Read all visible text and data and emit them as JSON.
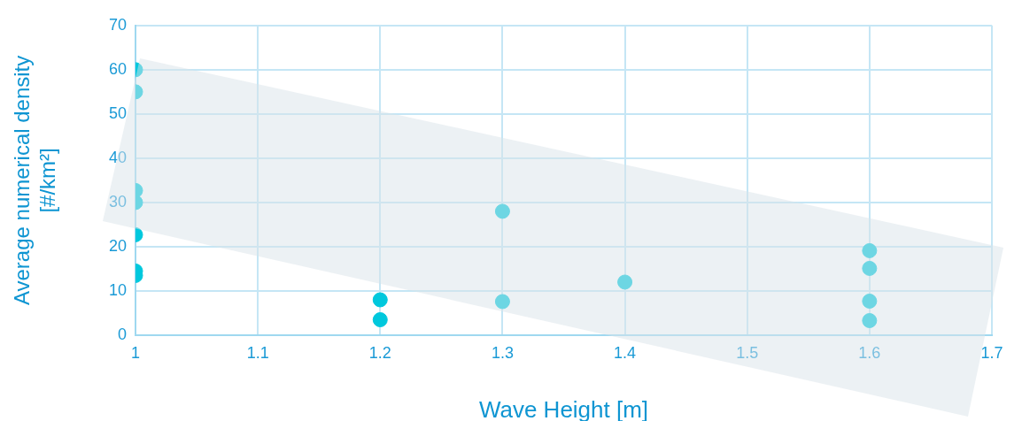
{
  "chart_data": {
    "type": "scatter",
    "xlabel": "Wave Height [m]",
    "ylabel": "Average numerical density [#/km²]",
    "x": [
      1,
      1,
      1,
      1,
      1,
      1,
      1,
      1.2,
      1.2,
      1.3,
      1.3,
      1.4,
      1.6,
      1.6,
      1.6,
      1.6
    ],
    "values": [
      60,
      55,
      32.7,
      30,
      22.7,
      14.5,
      13.5,
      8,
      3.5,
      28,
      7.6,
      12,
      19.1,
      15.1,
      7.7,
      3.3
    ],
    "color": "#00c8dd",
    "marker": "circle",
    "xlim": [
      1,
      1.7
    ],
    "xticks": [
      1,
      1.1,
      1.2,
      1.3,
      1.4,
      1.5,
      1.6,
      1.7
    ],
    "ylim": [
      0,
      70
    ],
    "yticks": [
      0,
      10,
      20,
      30,
      40,
      50,
      60,
      70
    ],
    "grid": true,
    "legend": false
  }
}
